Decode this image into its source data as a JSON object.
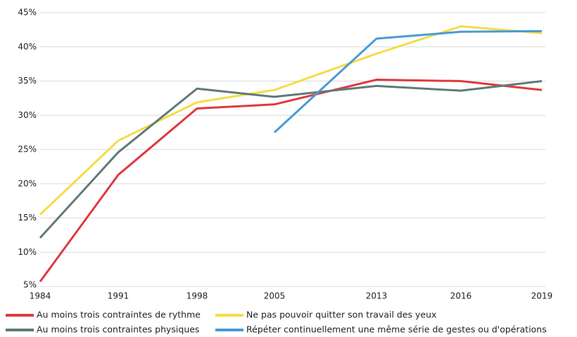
{
  "chart_data": {
    "type": "line",
    "categories": [
      "1984",
      "1991",
      "1998",
      "2005",
      "2013",
      "2016",
      "2019"
    ],
    "series": [
      {
        "name": "Au moins trois contraintes de rythme",
        "color": "#e0393e",
        "values": [
          5.7,
          21.3,
          31.0,
          31.6,
          35.2,
          35.0,
          33.7
        ]
      },
      {
        "name": "Ne pas pouvoir quitter son travail des yeux",
        "color": "#f5dc46",
        "values": [
          15.5,
          26.3,
          31.9,
          33.7,
          39.0,
          43.0,
          42.0
        ]
      },
      {
        "name": "Au moins trois contraintes physiques",
        "color": "#5f7a78",
        "values": [
          12.1,
          24.6,
          33.9,
          32.7,
          34.3,
          33.6,
          35.0
        ]
      },
      {
        "name": "Répéter continuellement une même série de gestes ou d'opérations",
        "color": "#4a9bd4",
        "values": [
          null,
          null,
          null,
          27.5,
          41.2,
          42.2,
          42.3
        ]
      }
    ],
    "ylim": [
      5,
      45
    ],
    "yticks": [
      {
        "value": 5,
        "label": "5%"
      },
      {
        "value": 10,
        "label": "10%"
      },
      {
        "value": 15,
        "label": "15%"
      },
      {
        "value": 20,
        "label": "20%"
      },
      {
        "value": 25,
        "label": "25%"
      },
      {
        "value": 30,
        "label": "30%"
      },
      {
        "value": 35,
        "label": "35%"
      },
      {
        "value": 40,
        "label": "40%"
      },
      {
        "value": 45,
        "label": "45%"
      }
    ],
    "grid": true
  }
}
